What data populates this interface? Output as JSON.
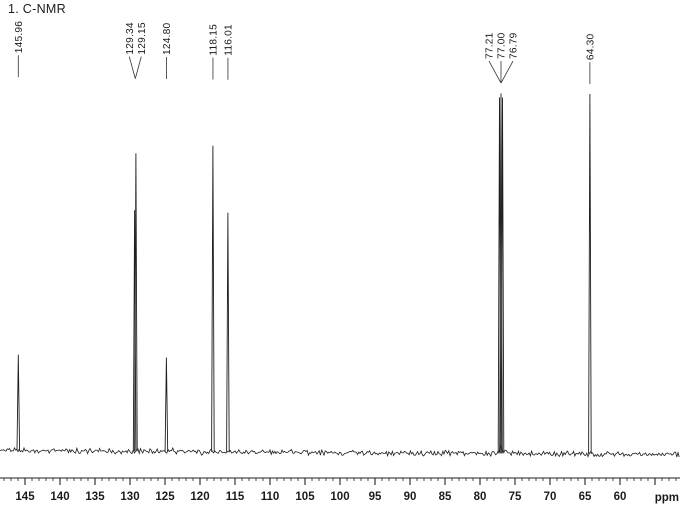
{
  "title": "1. C-NMR",
  "chart_data": {
    "type": "line",
    "subtype": "nmr-spectrum",
    "title": "1. C-NMR",
    "xlabel": "ppm",
    "x_axis": {
      "unit": "ppm",
      "reversed": true,
      "visible_range": [
        148.5,
        51.5
      ],
      "tick_labels": [
        "145",
        "140",
        "135",
        "130",
        "125",
        "120",
        "115",
        "110",
        "105",
        "100",
        "95",
        "90",
        "85",
        "80",
        "75",
        "70",
        "65",
        "60"
      ],
      "major_tick_interval": 5,
      "minor_tick_interval": 1,
      "grid": false
    },
    "peaks": [
      {
        "ppm": 145.96,
        "label": "145.96",
        "intensity": 96
      },
      {
        "ppm": 129.34,
        "label": "129.34",
        "intensity": 241
      },
      {
        "ppm": 129.15,
        "label": "129.15",
        "intensity": 298
      },
      {
        "ppm": 124.8,
        "label": "124.80",
        "intensity": 94
      },
      {
        "ppm": 118.15,
        "label": "118.15",
        "intensity": 306
      },
      {
        "ppm": 116.01,
        "label": "116.01",
        "intensity": 239
      },
      {
        "ppm": 77.21,
        "label": "77.21",
        "intensity": 356
      },
      {
        "ppm": 77.0,
        "label": "77.00",
        "intensity": 360
      },
      {
        "ppm": 76.79,
        "label": "76.79",
        "intensity": 356
      },
      {
        "ppm": 64.3,
        "label": "64.30",
        "intensity": 360
      }
    ],
    "peak_label_groups": [
      {
        "labels": [
          "145.96"
        ],
        "connector": "single"
      },
      {
        "labels": [
          "129.34",
          "129.15"
        ],
        "connector": "fan"
      },
      {
        "labels": [
          "124.80"
        ],
        "connector": "single"
      },
      {
        "labels": [
          "118.15"
        ],
        "connector": "single"
      },
      {
        "labels": [
          "116.01"
        ],
        "connector": "single"
      },
      {
        "labels": [
          "77.21",
          "77.00",
          "76.79"
        ],
        "connector": "fan"
      },
      {
        "labels": [
          "64.30"
        ],
        "connector": "single"
      }
    ],
    "colors": {
      "trace": "#1f1f1f",
      "text": "#1b1b1b",
      "background": "#ffffff"
    }
  }
}
